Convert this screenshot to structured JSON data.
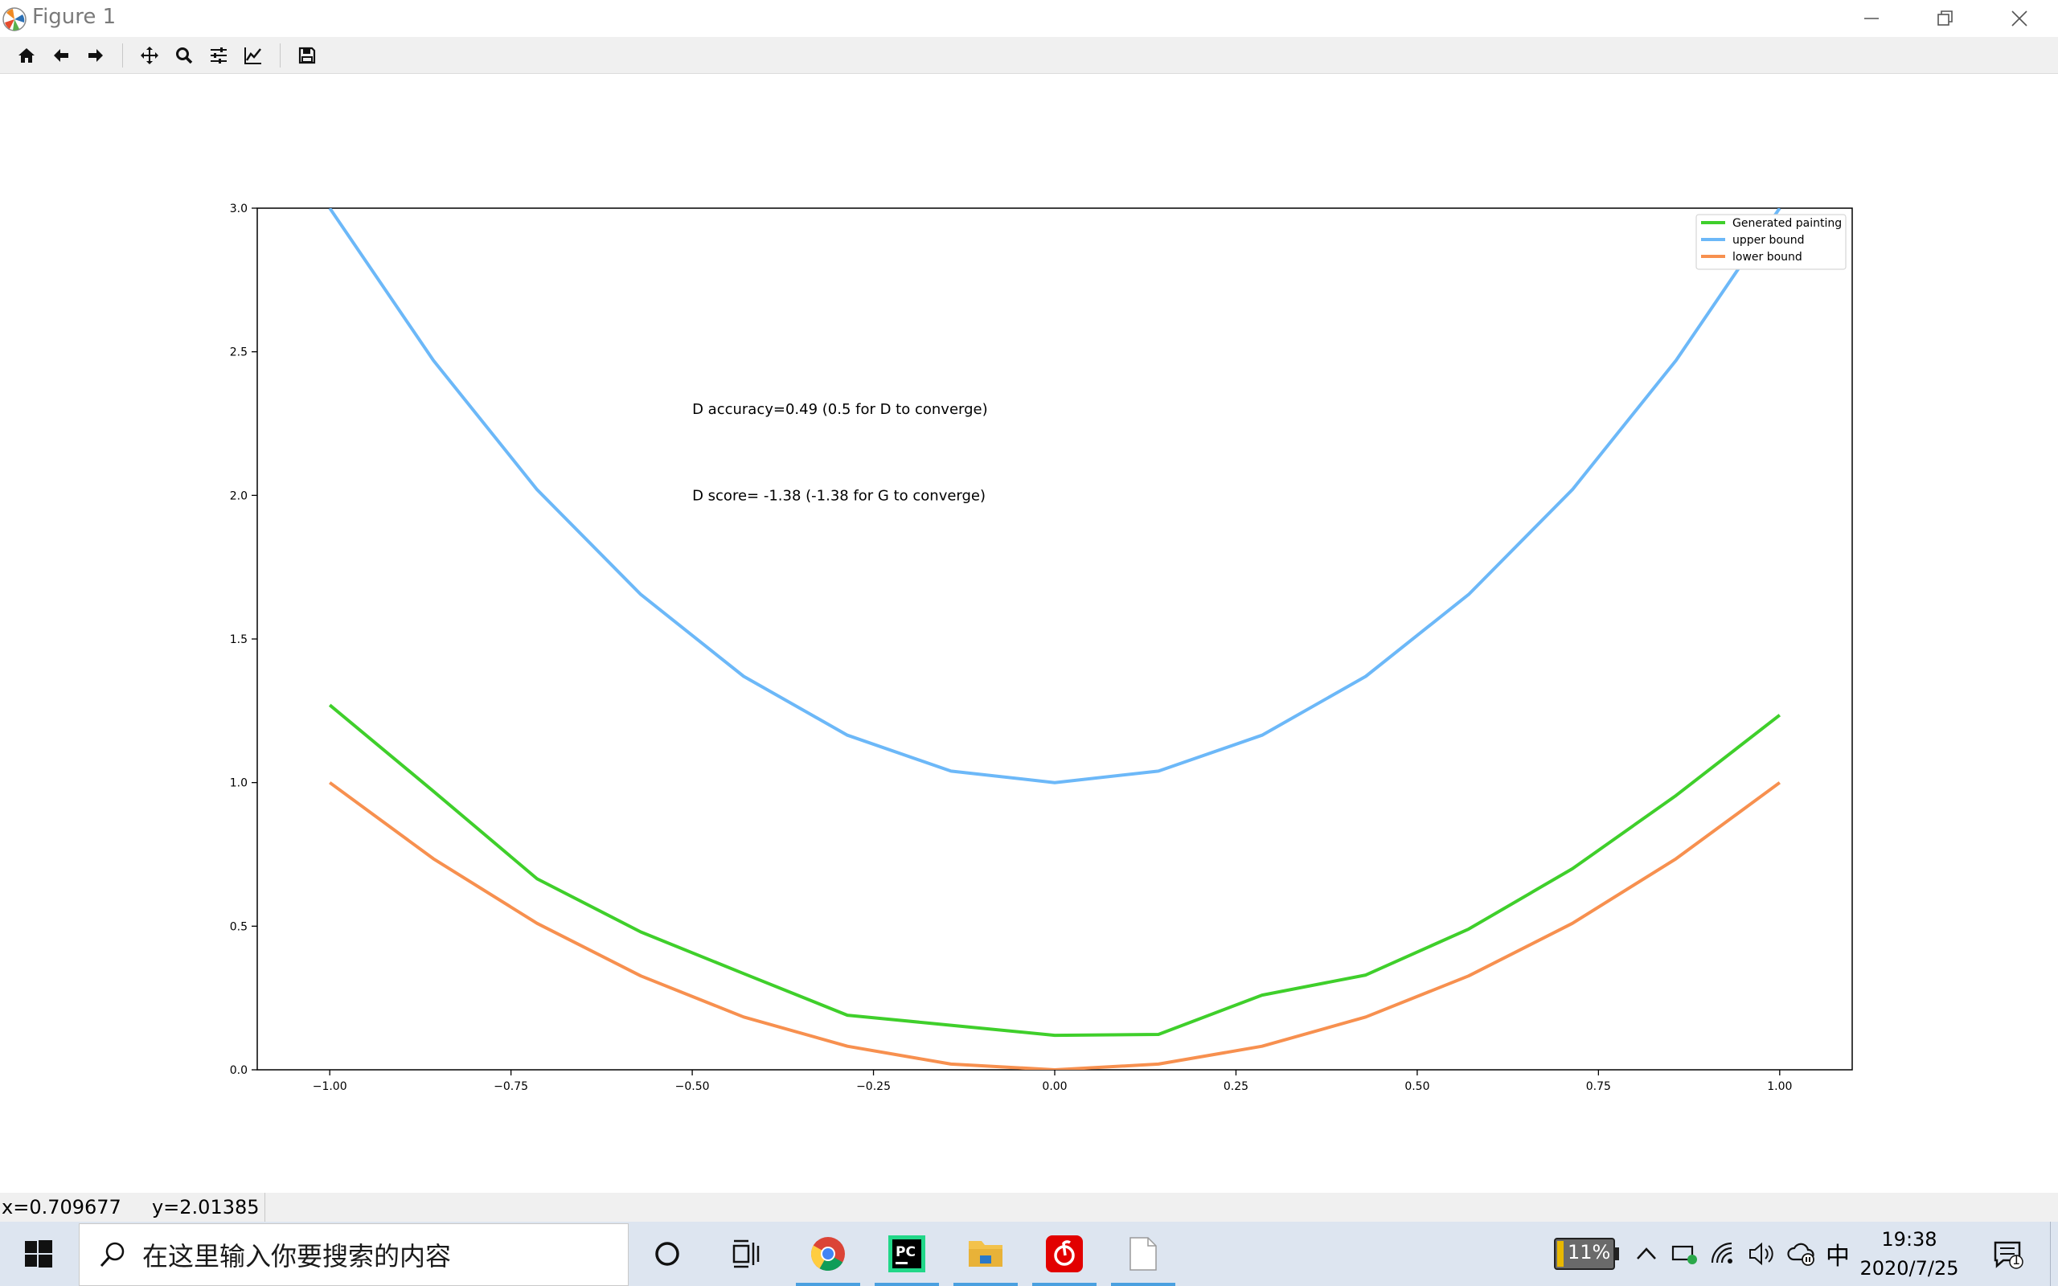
{
  "window": {
    "title": "Figure 1",
    "controls": [
      "minimize",
      "restore",
      "close"
    ]
  },
  "toolbar": {
    "buttons": [
      {
        "name": "home",
        "icon": "home-icon"
      },
      {
        "name": "back",
        "icon": "arrow-left-icon"
      },
      {
        "name": "forward",
        "icon": "arrow-right-icon"
      },
      {
        "name": "pan",
        "icon": "move-icon"
      },
      {
        "name": "zoom",
        "icon": "magnifier-icon"
      },
      {
        "name": "configure-subplots",
        "icon": "sliders-icon"
      },
      {
        "name": "edit-axis",
        "icon": "line-chart-icon"
      },
      {
        "name": "save",
        "icon": "floppy-disk-icon"
      }
    ]
  },
  "chart_data": {
    "type": "line",
    "title": "",
    "xlabel": "",
    "ylabel": "",
    "xlim": [
      -1.1,
      1.1
    ],
    "ylim": [
      0,
      3.0
    ],
    "xticks": [
      "−1.00",
      "−0.75",
      "−0.50",
      "−0.25",
      "0.00",
      "0.25",
      "0.50",
      "0.75",
      "1.00"
    ],
    "xtick_values": [
      -1.0,
      -0.75,
      -0.5,
      -0.25,
      0.0,
      0.25,
      0.5,
      0.75,
      1.0
    ],
    "yticks": [
      "0.0",
      "0.5",
      "1.0",
      "1.5",
      "2.0",
      "2.5",
      "3.0"
    ],
    "ytick_values": [
      0.0,
      0.5,
      1.0,
      1.5,
      2.0,
      2.5,
      3.0
    ],
    "grid": false,
    "legend_position": "top-right",
    "x": [
      -1.0,
      -0.857,
      -0.714,
      -0.571,
      -0.429,
      -0.286,
      -0.143,
      0.0,
      0.143,
      0.286,
      0.429,
      0.571,
      0.714,
      0.857,
      1.0
    ],
    "series": [
      {
        "name": "Generated painting",
        "color": "#3fcf2b",
        "values": [
          1.27,
          0.97,
          0.665,
          0.48,
          0.335,
          0.19,
          0.155,
          0.12,
          0.123,
          0.26,
          0.33,
          0.49,
          0.7,
          0.955,
          1.235
        ]
      },
      {
        "name": "upper bound",
        "color": "#6cb8f8",
        "values": [
          3.0,
          2.47,
          2.02,
          1.655,
          1.37,
          1.165,
          1.04,
          1.0,
          1.04,
          1.165,
          1.37,
          1.655,
          2.02,
          2.47,
          3.0
        ]
      },
      {
        "name": "lower bound",
        "color": "#f7904f",
        "values": [
          1.0,
          0.735,
          0.51,
          0.327,
          0.184,
          0.082,
          0.02,
          0.0,
          0.02,
          0.082,
          0.184,
          0.327,
          0.51,
          0.735,
          1.0
        ]
      }
    ],
    "annotations": [
      {
        "text": "D accuracy=0.49 (0.5 for D to converge)",
        "x": -0.5,
        "y": 2.3
      },
      {
        "text": "D score= -1.38 (-1.38 for G to converge)",
        "x": -0.5,
        "y": 2.0
      }
    ]
  },
  "statusbar": {
    "coords": "x=0.709677     y=2.01385"
  },
  "taskbar": {
    "search_placeholder": "在这里输入你要搜索的内容",
    "apps": [
      {
        "name": "cortana",
        "icon": "circle-icon"
      },
      {
        "name": "task-view",
        "icon": "task-view-icon"
      },
      {
        "name": "chrome",
        "icon": "chrome-icon"
      },
      {
        "name": "pycharm",
        "icon": "pycharm-icon",
        "label": "PC"
      },
      {
        "name": "file-explorer",
        "icon": "folder-icon"
      },
      {
        "name": "netease-music",
        "icon": "netease-music-icon"
      },
      {
        "name": "blank-document",
        "icon": "document-icon"
      }
    ],
    "battery": "11%",
    "ime": "中",
    "time": "19:38",
    "date": "2020/7/25",
    "notification_count": "1"
  }
}
